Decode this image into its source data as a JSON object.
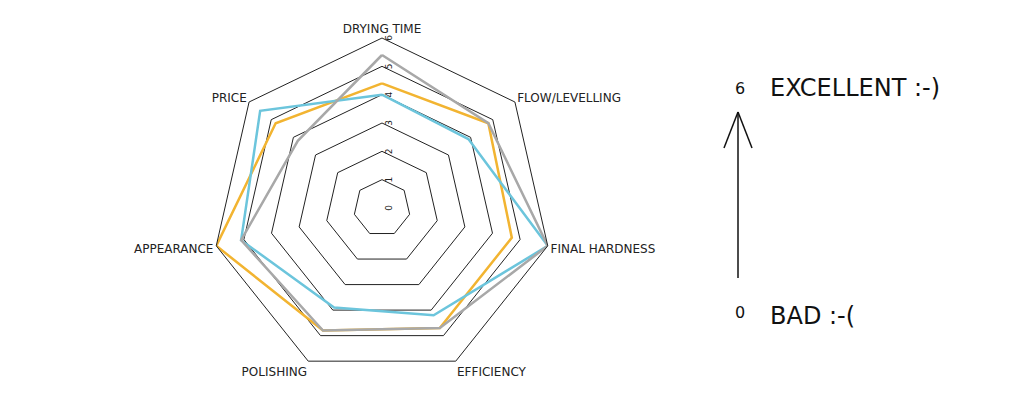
{
  "chart_data": {
    "type": "radar",
    "categories": [
      "DRYING TIME",
      "FLOW/LEVELLING",
      "FINAL HARDNESS",
      "EFFICIENCY",
      "POLISHING",
      "APPEARANCE",
      "PRICE"
    ],
    "series": [
      {
        "color": "#f2b431",
        "values": [
          4.4,
          4.8,
          4.7,
          4.7,
          4.8,
          6,
          4.8
        ]
      },
      {
        "color": "#6cc5dc",
        "values": [
          4.0,
          3.9,
          6,
          4.2,
          3.9,
          5.1,
          5.5
        ]
      },
      {
        "color": "#a8a8a8",
        "values": [
          5.4,
          4.8,
          6,
          4.7,
          4.8,
          5.1,
          3.8
        ]
      }
    ],
    "ylim": [
      0,
      6
    ],
    "yticks": [
      0,
      1,
      2,
      3,
      4,
      5,
      6
    ],
    "grid": true,
    "annotations": [
      {
        "value": 6,
        "text": "EXCELLENT :-)"
      },
      {
        "value": 0,
        "text": "BAD :-("
      }
    ]
  }
}
